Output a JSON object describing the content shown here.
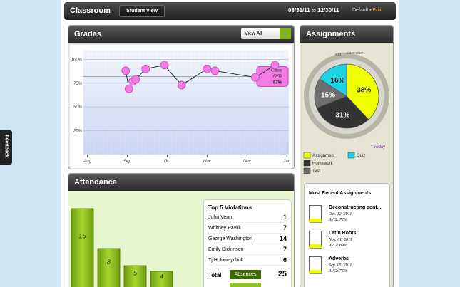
{
  "header": {
    "title": "Classroom",
    "button": "Student View",
    "date_start": "08/31/11",
    "date_sep": "to",
    "date_end": "12/30/11",
    "view": "Default",
    "separator": "•",
    "edit": "Edit"
  },
  "feedback": "Feedback",
  "grades": {
    "title": "Grades",
    "filter": "View All",
    "chart_data": {
      "type": "line",
      "x": [
        0.96,
        1.04,
        1.14,
        1.21,
        1.46,
        1.93,
        2.36,
        3.0,
        3.2,
        4.21,
        4.7
      ],
      "values": [
        88,
        69,
        77,
        79,
        90,
        94,
        73,
        90,
        88,
        81,
        94
      ],
      "color": "#f07ce4",
      "xlim": [
        -0.1,
        5.05
      ],
      "xticks": [
        {
          "value": 0,
          "label": "Aug"
        },
        {
          "value": 1,
          "label": "Sep"
        },
        {
          "value": 2,
          "label": "Oct"
        },
        {
          "value": 3,
          "label": "Nov"
        },
        {
          "value": 4,
          "label": "Dec"
        },
        {
          "value": 5,
          "label": "Jan"
        }
      ],
      "ylim": [
        0,
        110
      ],
      "yticks": [
        {
          "value": 100,
          "label": "100%"
        },
        {
          "value": 75,
          "label": "75%"
        },
        {
          "value": 50,
          "label": "50%"
        },
        {
          "value": 25,
          "label": "25%"
        }
      ],
      "grid": true,
      "average": {
        "labels": [
          "Class",
          "AVG"
        ],
        "value": 82,
        "value_label": "82%"
      }
    }
  },
  "assignments": {
    "title": "Assignments",
    "chart_data": {
      "type": "pie",
      "categories": [
        "Assignment",
        "Homework",
        "Test",
        "Quiz"
      ],
      "values": [
        38,
        31,
        15,
        16
      ],
      "value_labels": [
        "38%",
        "31%",
        "15%",
        "16%"
      ],
      "colors": [
        "#f0ff00",
        "#333333",
        "#6e6e6e",
        "#1ed2e6"
      ],
      "annotations": [
        "end",
        "class start",
        "* Today"
      ]
    },
    "recent": {
      "title": "Most Recent Assignments",
      "items": [
        {
          "name": "Deconstructing sent...",
          "date": "Oct. 12, 2011",
          "avg": "AVG: 72%"
        },
        {
          "name": "Latin Roots",
          "date": "Nov. 01, 2011",
          "avg": "AVG: 89%"
        },
        {
          "name": "Adverbs",
          "date": "Sep. 05, 2011",
          "avg": "AVG: 75%"
        }
      ]
    }
  },
  "attendance": {
    "title": "Attendance",
    "chart_data": {
      "type": "bar",
      "values": [
        15,
        8,
        5,
        4
      ],
      "color": "#8dc21f"
    },
    "violations": {
      "title": "Top 5 Violations",
      "rows": [
        [
          "John Venn",
          "1"
        ],
        [
          "Whitney Pavlik",
          "7"
        ],
        [
          "George Washington",
          "14"
        ],
        [
          "Emily Dickinson",
          "7"
        ],
        [
          "Tj Holowaychuk",
          "6"
        ]
      ],
      "total_label": "Total",
      "total_category": "Absences",
      "total": "25"
    }
  }
}
